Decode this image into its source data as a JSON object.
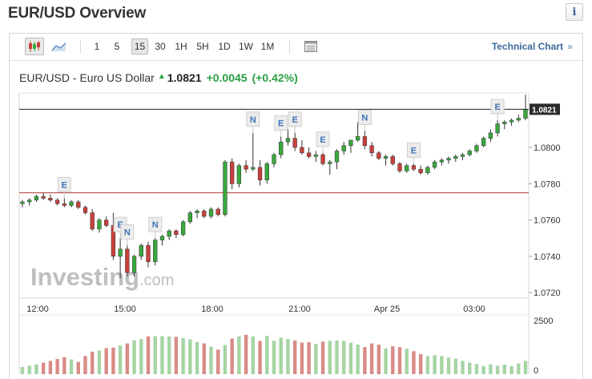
{
  "header": {
    "title": "EUR/USD Overview",
    "info_icon": "info-icon"
  },
  "toolbar": {
    "chart_type_icons": [
      "candlestick-icon",
      "area-chart-icon"
    ],
    "timeframes": [
      "1",
      "5",
      "15",
      "30",
      "1H",
      "5H",
      "1D",
      "1W",
      "1M"
    ],
    "active_timeframe": "15",
    "table_icon": "table-icon",
    "technical_link": "Technical Chart",
    "technical_link_arrow": "»"
  },
  "quote": {
    "name": "EUR/USD - Euro US Dollar",
    "price": "1.0821",
    "change": "+0.0045",
    "change_pct": "(+0.42%)",
    "up_color": "#2aa043"
  },
  "watermark": {
    "brand": "Investing",
    "suffix": ".com"
  },
  "chart_data": {
    "type": "candlestick",
    "x_ticks": [
      "12:00",
      "15:00",
      "18:00",
      "21:00",
      "Apr 25",
      "03:00"
    ],
    "y_ticks": [
      "1.0800",
      "1.0780",
      "1.0760",
      "1.0740",
      "1.0720"
    ],
    "ylim": [
      1.0717,
      1.083
    ],
    "current_price": "1.0821",
    "reference_price": 1.0775,
    "up_color": "#39a83c",
    "down_color": "#c9403c",
    "volume_ticks": [
      "2500",
      "0"
    ],
    "volume_range": [
      0,
      2500
    ],
    "candles": [
      [
        1.0769,
        1.0771,
        1.0767,
        1.077
      ],
      [
        1.077,
        1.0772,
        1.0768,
        1.0771
      ],
      [
        1.0771,
        1.0774,
        1.077,
        1.0773
      ],
      [
        1.0773,
        1.0775,
        1.0771,
        1.0772
      ],
      [
        1.0772,
        1.0774,
        1.077,
        1.0771
      ],
      [
        1.0771,
        1.0772,
        1.0768,
        1.0769
      ],
      [
        1.0769,
        1.0772,
        1.0767,
        1.0768
      ],
      [
        1.0768,
        1.0771,
        1.0767,
        1.077
      ],
      [
        1.077,
        1.0771,
        1.0766,
        1.0767
      ],
      [
        1.0767,
        1.0768,
        1.0763,
        1.0764
      ],
      [
        1.0764,
        1.0766,
        1.0754,
        1.0755
      ],
      [
        1.0755,
        1.0761,
        1.0753,
        1.076
      ],
      [
        1.076,
        1.0762,
        1.0756,
        1.0757
      ],
      [
        1.0757,
        1.0764,
        1.0738,
        1.074
      ],
      [
        1.074,
        1.075,
        1.0728,
        1.0744
      ],
      [
        1.0744,
        1.0746,
        1.0729,
        1.0731
      ],
      [
        1.0731,
        1.0741,
        1.0729,
        1.074
      ],
      [
        1.074,
        1.0747,
        1.0738,
        1.0746
      ],
      [
        1.0746,
        1.0748,
        1.0734,
        1.0737
      ],
      [
        1.0737,
        1.075,
        1.0735,
        1.0749
      ],
      [
        1.0749,
        1.0752,
        1.0746,
        1.0751
      ],
      [
        1.0751,
        1.0755,
        1.0749,
        1.0754
      ],
      [
        1.0754,
        1.0755,
        1.075,
        1.0752
      ],
      [
        1.0752,
        1.076,
        1.0751,
        1.0759
      ],
      [
        1.0759,
        1.0765,
        1.0758,
        1.0764
      ],
      [
        1.0764,
        1.0766,
        1.0761,
        1.0765
      ],
      [
        1.0765,
        1.0766,
        1.0761,
        1.0762
      ],
      [
        1.0762,
        1.0767,
        1.0761,
        1.0766
      ],
      [
        1.0766,
        1.0767,
        1.0762,
        1.0763
      ],
      [
        1.0763,
        1.0793,
        1.0762,
        1.0792
      ],
      [
        1.0792,
        1.0794,
        1.0777,
        1.078
      ],
      [
        1.078,
        1.0791,
        1.0778,
        1.079
      ],
      [
        1.079,
        1.0793,
        1.0786,
        1.0788
      ],
      [
        1.0788,
        1.0808,
        1.0787,
        1.0789
      ],
      [
        1.0789,
        1.0793,
        1.0779,
        1.0782
      ],
      [
        1.0782,
        1.0792,
        1.078,
        1.0791
      ],
      [
        1.0791,
        1.0797,
        1.0789,
        1.0796
      ],
      [
        1.0796,
        1.0806,
        1.0794,
        1.0803
      ],
      [
        1.0803,
        1.081,
        1.0801,
        1.0805
      ],
      [
        1.0805,
        1.0808,
        1.0798,
        1.08
      ],
      [
        1.08,
        1.0804,
        1.0796,
        1.0797
      ],
      [
        1.0797,
        1.08,
        1.0794,
        1.0795
      ],
      [
        1.0795,
        1.0798,
        1.0792,
        1.0796
      ],
      [
        1.0796,
        1.0797,
        1.079,
        1.0791
      ],
      [
        1.0791,
        1.0793,
        1.0785,
        1.0792
      ],
      [
        1.0792,
        1.0799,
        1.0788,
        1.0798
      ],
      [
        1.0798,
        1.0803,
        1.0796,
        1.0801
      ],
      [
        1.0801,
        1.0804,
        1.0797,
        1.0804
      ],
      [
        1.0804,
        1.0814,
        1.0803,
        1.0806
      ],
      [
        1.0806,
        1.0809,
        1.0799,
        1.0801
      ],
      [
        1.0801,
        1.0803,
        1.0795,
        1.0797
      ],
      [
        1.0797,
        1.0798,
        1.0793,
        1.0794
      ],
      [
        1.0794,
        1.0796,
        1.079,
        1.0795
      ],
      [
        1.0795,
        1.0796,
        1.079,
        1.0791
      ],
      [
        1.0791,
        1.0792,
        1.0786,
        1.0787
      ],
      [
        1.0787,
        1.0791,
        1.0786,
        1.079
      ],
      [
        1.079,
        1.0791,
        1.0787,
        1.0788
      ],
      [
        1.0788,
        1.079,
        1.0785,
        1.0786
      ],
      [
        1.0786,
        1.079,
        1.0785,
        1.0789
      ],
      [
        1.0789,
        1.0793,
        1.0788,
        1.0792
      ],
      [
        1.0792,
        1.0794,
        1.079,
        1.0793
      ],
      [
        1.0793,
        1.0795,
        1.0791,
        1.0794
      ],
      [
        1.0794,
        1.0796,
        1.0792,
        1.0795
      ],
      [
        1.0795,
        1.0797,
        1.0793,
        1.0796
      ],
      [
        1.0796,
        1.0799,
        1.0795,
        1.0798
      ],
      [
        1.0798,
        1.0802,
        1.0797,
        1.0801
      ],
      [
        1.0801,
        1.0806,
        1.08,
        1.0805
      ],
      [
        1.0805,
        1.081,
        1.0803,
        1.0808
      ],
      [
        1.0808,
        1.0815,
        1.0806,
        1.0813
      ],
      [
        1.0813,
        1.0815,
        1.081,
        1.0814
      ],
      [
        1.0814,
        1.0816,
        1.0812,
        1.0815
      ],
      [
        1.0815,
        1.0818,
        1.0814,
        1.0816
      ],
      [
        1.0816,
        1.0829,
        1.0815,
        1.0821
      ]
    ],
    "volumes": [
      350,
      420,
      480,
      560,
      650,
      740,
      830,
      720,
      600,
      890,
      1100,
      1150,
      1270,
      1300,
      1400,
      1500,
      1650,
      1710,
      1840,
      1850,
      1850,
      1840,
      1820,
      1760,
      1700,
      1570,
      1500,
      1350,
      1200,
      1420,
      1740,
      1840,
      1920,
      1840,
      1620,
      1870,
      1630,
      1780,
      1720,
      1640,
      1540,
      1560,
      1480,
      1590,
      1630,
      1640,
      1620,
      1530,
      1440,
      1320,
      1500,
      1440,
      1260,
      1360,
      1320,
      1240,
      1120,
      980,
      880,
      920,
      890,
      810,
      760,
      650,
      560,
      500,
      400,
      480,
      410,
      470,
      400,
      520,
      650
    ],
    "events": [
      {
        "label": "E",
        "candle": 6
      },
      {
        "label": "E",
        "candle": 14
      },
      {
        "label": "N",
        "candle": 15
      },
      {
        "label": "N",
        "candle": 19
      },
      {
        "label": "N",
        "candle": 33
      },
      {
        "label": "E",
        "candle": 37
      },
      {
        "label": "E",
        "candle": 39
      },
      {
        "label": "E",
        "candle": 43
      },
      {
        "label": "N",
        "candle": 49
      },
      {
        "label": "E",
        "candle": 56
      },
      {
        "label": "E",
        "candle": 68
      }
    ]
  }
}
